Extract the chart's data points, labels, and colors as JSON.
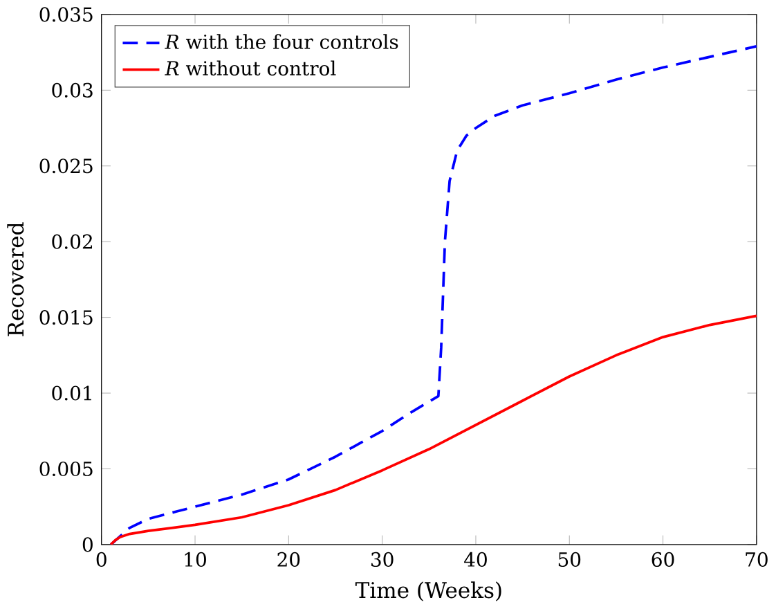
{
  "chart_data": {
    "type": "line",
    "xlabel": "Time (Weeks)",
    "ylabel": "Recovered",
    "xlim": [
      0,
      70
    ],
    "ylim": [
      0,
      0.035
    ],
    "xticks": [
      0,
      10,
      20,
      30,
      40,
      50,
      60,
      70
    ],
    "yticks": [
      0,
      0.005,
      0.01,
      0.015,
      0.02,
      0.025,
      0.03,
      0.035
    ],
    "legend": "top left",
    "grid": false,
    "series": [
      {
        "name": "*R* with the four controls",
        "color": "#0000ff",
        "line_style": "dashed",
        "x": [
          1,
          3,
          5,
          10,
          15,
          20,
          25,
          30,
          33,
          36,
          36.3,
          36.7,
          37.2,
          38,
          39,
          40,
          42,
          45,
          50,
          55,
          60,
          65,
          70
        ],
        "values": [
          0,
          0.0011,
          0.0017,
          0.0025,
          0.0033,
          0.0043,
          0.0058,
          0.0075,
          0.0087,
          0.0098,
          0.013,
          0.02,
          0.024,
          0.026,
          0.027,
          0.0275,
          0.0283,
          0.029,
          0.0298,
          0.0307,
          0.0315,
          0.0322,
          0.0329
        ]
      },
      {
        "name": "*R* without control",
        "color": "#ff0000",
        "line_style": "solid",
        "x": [
          1,
          1.5,
          2,
          3,
          5,
          10,
          15,
          20,
          25,
          30,
          35,
          40,
          45,
          50,
          55,
          60,
          65,
          70
        ],
        "values": [
          0,
          0.0003,
          0.0005,
          0.0007,
          0.0009,
          0.0013,
          0.0018,
          0.0026,
          0.0036,
          0.0049,
          0.0063,
          0.0079,
          0.0095,
          0.0111,
          0.0125,
          0.0137,
          0.0145,
          0.0151
        ]
      }
    ]
  }
}
